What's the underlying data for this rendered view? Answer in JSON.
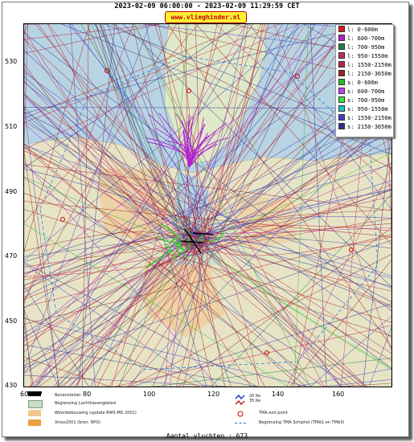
{
  "header": {
    "date_range": "2023-02-09 06:00:00 - 2023-02-09 11:29:59 CET",
    "brand": "www.vlieghinder.nl"
  },
  "axes": {
    "y_ticks": [
      "530",
      "510",
      "490",
      "470",
      "450",
      "430"
    ],
    "x_ticks": [
      "60",
      "80",
      "100",
      "120",
      "140",
      "160"
    ]
  },
  "legend": {
    "items": [
      {
        "label": "l: 0-600m",
        "color": "#e01818"
      },
      {
        "label": "l: 600-700m",
        "color": "#b020d0"
      },
      {
        "label": "l: 700-950m",
        "color": "#208040"
      },
      {
        "label": "l: 950-1550m",
        "color": "#c03060"
      },
      {
        "label": "l: 1550-2150m",
        "color": "#c02040"
      },
      {
        "label": "l: 2150-3650m",
        "color": "#a02020"
      },
      {
        "label": "s: 0-600m",
        "color": "#20c020"
      },
      {
        "label": "s: 600-700m",
        "color": "#c040f0"
      },
      {
        "label": "s: 700-950m",
        "color": "#40e040"
      },
      {
        "label": "s: 950-1550m",
        "color": "#20c0c0"
      },
      {
        "label": "s: 1550-2150m",
        "color": "#4040c0"
      },
      {
        "label": "s: 2150-3650m",
        "color": "#303090"
      }
    ]
  },
  "map_legend": {
    "runway": "Banenstelsel",
    "airport_boundary": "Begrenzing Luchthavengebied",
    "housing": "Woonbebouwing (update RWS-MD 2001)",
    "vinex": "Vinex2001 (bron: RPD)",
    "contour_20ke": "20 Ke",
    "contour_35ke": "35 Ke",
    "tma_exit": "TMA exit point",
    "tma_boundary": "Begrenzing TMA Schiphol  (TMA1 en TMA3)"
  },
  "footer": {
    "flight_count": "Aantal vluchten : 673"
  }
}
